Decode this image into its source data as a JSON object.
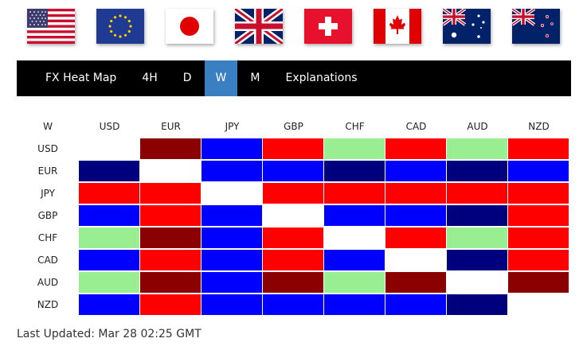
{
  "flags": [
    {
      "currency": "USD",
      "icon": "us-flag-icon"
    },
    {
      "currency": "EUR",
      "icon": "eu-flag-icon"
    },
    {
      "currency": "JPY",
      "icon": "japan-flag-icon"
    },
    {
      "currency": "GBP",
      "icon": "uk-flag-icon"
    },
    {
      "currency": "CHF",
      "icon": "swiss-flag-icon"
    },
    {
      "currency": "CAD",
      "icon": "canada-flag-icon"
    },
    {
      "currency": "AUD",
      "icon": "australia-flag-icon"
    },
    {
      "currency": "NZD",
      "icon": "new-zealand-flag-icon"
    }
  ],
  "nav": {
    "items": [
      "FX Heat Map",
      "4H",
      "D",
      "W",
      "M",
      "Explanations"
    ],
    "active": "W",
    "active_color": "#3a7fc1"
  },
  "heatmap": {
    "corner_label": "W",
    "columns": [
      "USD",
      "EUR",
      "JPY",
      "GBP",
      "CHF",
      "CAD",
      "AUD",
      "NZD"
    ],
    "rows": [
      "USD",
      "EUR",
      "JPY",
      "GBP",
      "CHF",
      "CAD",
      "AUD",
      "NZD"
    ],
    "palette": {
      "dark_red": "#8b0000",
      "red": "#ff0000",
      "light_green": "#98ee90",
      "blue": "#0000ff",
      "dark_blue": "#00007f",
      "empty": "#ffffff"
    },
    "cells": [
      [
        "empty",
        "dark_red",
        "blue",
        "red",
        "light_green",
        "red",
        "light_green",
        "red"
      ],
      [
        "dark_blue",
        "empty",
        "blue",
        "blue",
        "dark_blue",
        "blue",
        "dark_blue",
        "blue"
      ],
      [
        "red",
        "red",
        "empty",
        "red",
        "red",
        "red",
        "red",
        "red"
      ],
      [
        "blue",
        "red",
        "blue",
        "empty",
        "blue",
        "blue",
        "dark_blue",
        "red"
      ],
      [
        "light_green",
        "dark_red",
        "blue",
        "red",
        "empty",
        "red",
        "light_green",
        "red"
      ],
      [
        "blue",
        "red",
        "blue",
        "red",
        "blue",
        "empty",
        "dark_blue",
        "red"
      ],
      [
        "light_green",
        "dark_red",
        "blue",
        "dark_red",
        "light_green",
        "dark_red",
        "empty",
        "dark_red"
      ],
      [
        "blue",
        "red",
        "blue",
        "blue",
        "blue",
        "blue",
        "dark_blue",
        "empty"
      ]
    ]
  },
  "footer": {
    "last_updated": "Last Updated: Mar 28 02:25 GMT"
  }
}
